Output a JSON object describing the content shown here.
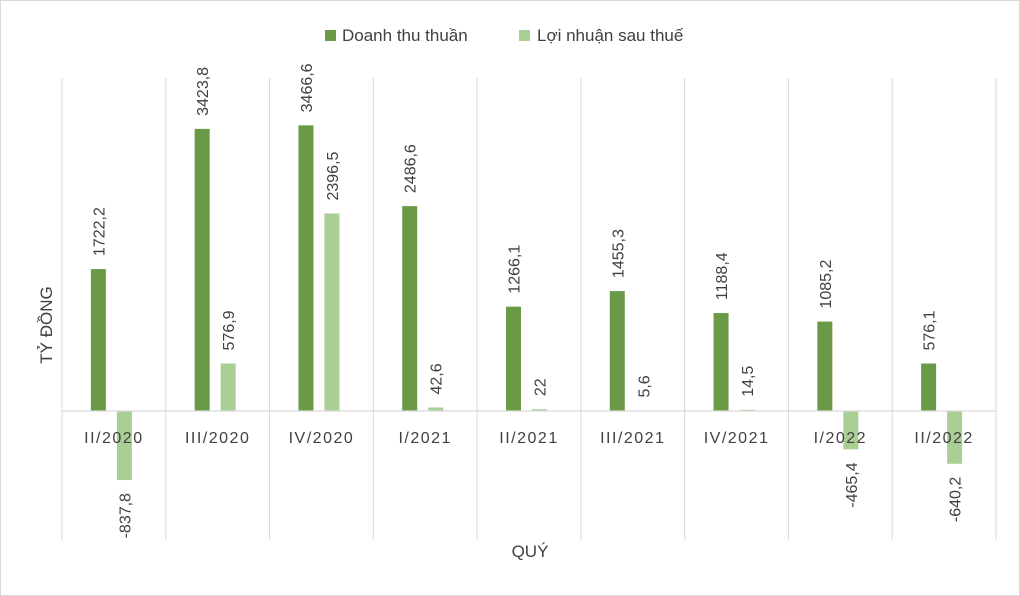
{
  "chart_data": {
    "type": "bar",
    "xlabel": "QUÝ",
    "ylabel": "TỶ ĐỒNG",
    "legend_position": "top",
    "grid": "vertical category separators only",
    "categories": [
      "II/2020",
      "III/2020",
      "IV/2020",
      "I/2021",
      "II/2021",
      "III/2021",
      "IV/2021",
      "I/2022",
      "II/2022"
    ],
    "series": [
      {
        "name": "Doanh thu thuần",
        "color": "#6a9a48",
        "values": [
          1722.2,
          3423.8,
          3466.6,
          2486.6,
          1266.1,
          1455.3,
          1188.4,
          1085.2,
          576.1
        ],
        "labels": [
          "1722,2",
          "3423,8",
          "3466,6",
          "2486,6",
          "1266,1",
          "1455,3",
          "1188,4",
          "1085,2",
          "576,1"
        ]
      },
      {
        "name": "Lợi nhuận sau thuế",
        "color": "#a9cf94",
        "values": [
          -837.8,
          576.9,
          2396.5,
          42.6,
          22,
          5.6,
          14.5,
          -465.4,
          -640.2
        ],
        "labels": [
          "-837,8",
          "576,9",
          "2396,5",
          "42,6",
          "22",
          "5,6",
          "14,5",
          "-465,4",
          "-640,2"
        ]
      }
    ]
  }
}
